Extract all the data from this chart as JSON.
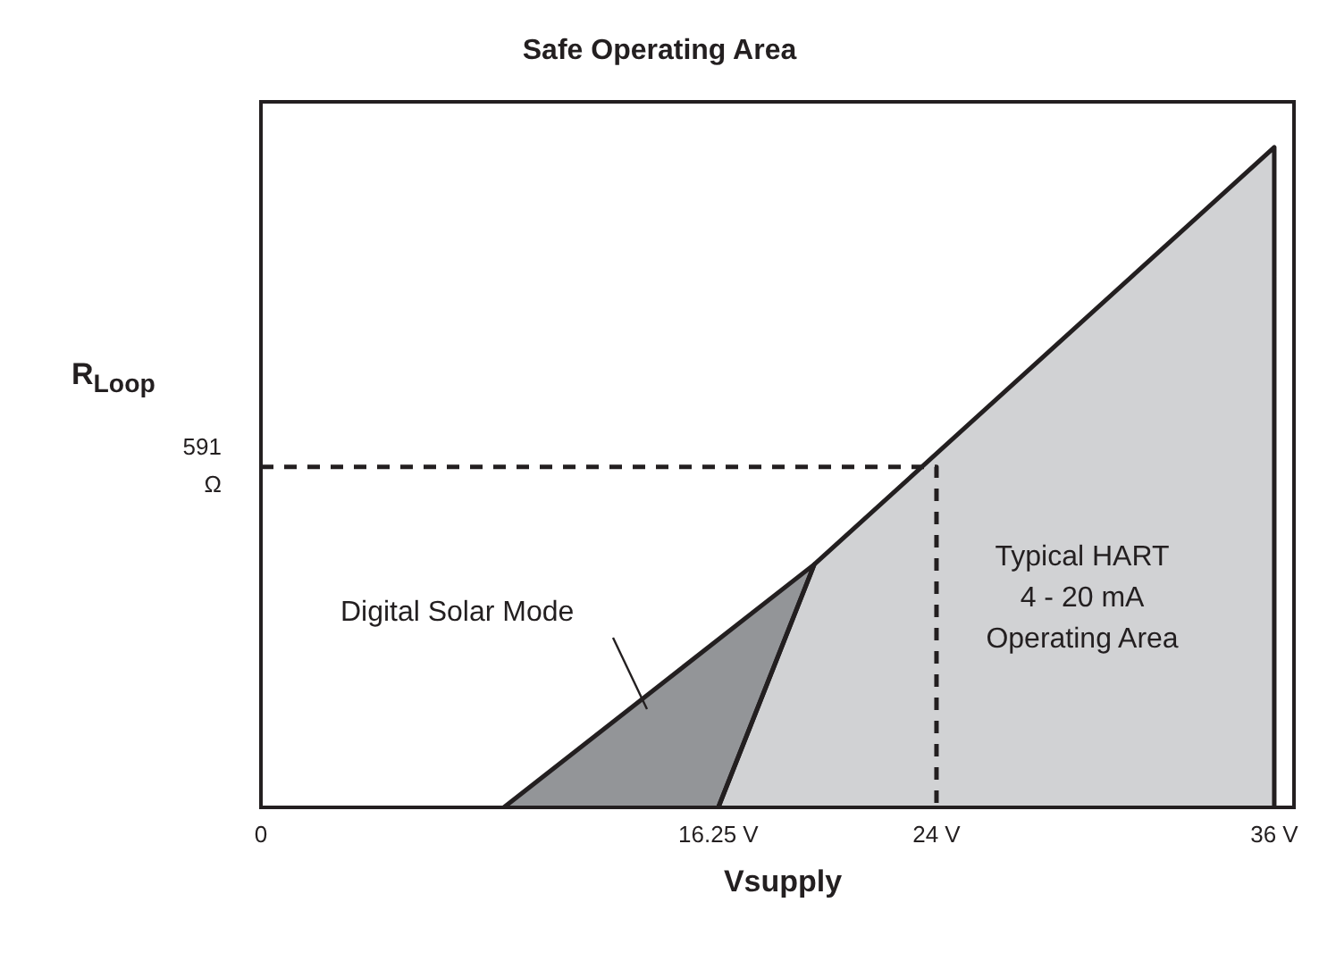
{
  "chart_data": {
    "type": "area",
    "title": "Safe Operating Area",
    "xlabel": "Vsupply",
    "ylabel": "R$_{Loop}$",
    "xlim": [
      0,
      36.7
    ],
    "xticks": [
      0,
      {
        "value": 16.25,
        "label": "16.25 V"
      },
      {
        "value": 24,
        "label": "24 V"
      },
      {
        "value": 36,
        "label": "36 V"
      }
    ],
    "ylim": [
      0,
      1225
    ],
    "yticks": [
      {
        "value": 591,
        "label": "591\nΩ"
      }
    ],
    "grid": false,
    "legend": false,
    "series": [
      {
        "color": "#d1d2d4",
        "x": [
          16.25,
          19.66,
          36,
          36
        ],
        "values": [
          0,
          422,
          1146,
          0
        ]
      },
      {
        "color": "#939598",
        "x": [
          8.63,
          19.66,
          16.25
        ],
        "values": [
          0,
          422,
          0
        ]
      },
      {
        "type": "line",
        "color": "#231f20",
        "line_style": "dashed",
        "x": [
          0,
          24,
          24
        ],
        "values": [
          591,
          591,
          0
        ]
      }
    ],
    "annotations": [
      "Digital Solar Mode",
      "Typical HART\n4 - 20 mA\nOperating Area"
    ]
  }
}
